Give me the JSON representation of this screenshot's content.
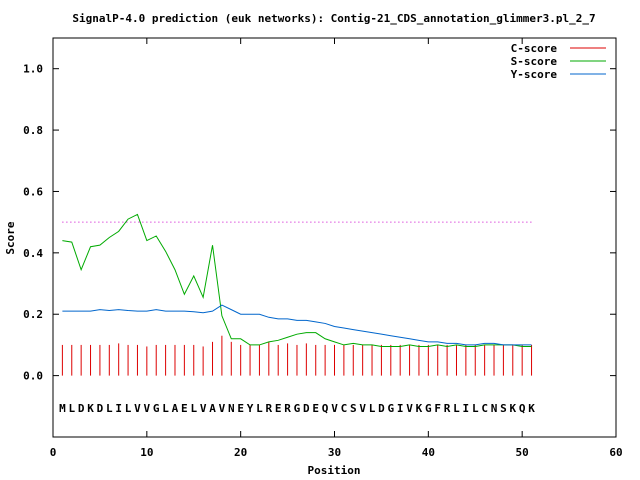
{
  "chart_data": {
    "type": "line",
    "title": "SignalP-4.0 prediction (euk networks): Contig-21_CDS_annotation_glimmer3.pl_2_7",
    "xlabel": "Position",
    "ylabel": "Score",
    "xlim": [
      0,
      60
    ],
    "ylim": [
      -0.2,
      1.1
    ],
    "x_ticks": [
      0,
      10,
      20,
      30,
      40,
      50,
      60
    ],
    "y_ticks": [
      0.0,
      0.2,
      0.4,
      0.6,
      0.8,
      1.0
    ],
    "x_tick_labels": [
      "0",
      "10",
      "20",
      "30",
      "40",
      "50",
      "60"
    ],
    "y_tick_labels": [
      "0.0",
      "0.2",
      "0.4",
      "0.6",
      "0.8",
      "1.0"
    ],
    "legend_position": "top-right",
    "threshold": {
      "value": 0.5,
      "color": "#cc00cc"
    },
    "sequence": [
      "M",
      "L",
      "D",
      "K",
      "D",
      "L",
      "I",
      "L",
      "V",
      "V",
      "G",
      "L",
      "A",
      "E",
      "L",
      "V",
      "A",
      "V",
      "N",
      "E",
      "Y",
      "L",
      "R",
      "E",
      "R",
      "G",
      "D",
      "E",
      "Q",
      "V",
      "C",
      "S",
      "V",
      "L",
      "D",
      "G",
      "I",
      "V",
      "K",
      "G",
      "F",
      "R",
      "L",
      "I",
      "L",
      "C",
      "N",
      "S",
      "K",
      "Q",
      "K"
    ],
    "series": [
      {
        "name": "C-score",
        "color": "#dd0000",
        "style": "impulses",
        "values": [
          0.1,
          0.1,
          0.1,
          0.1,
          0.1,
          0.1,
          0.105,
          0.1,
          0.1,
          0.095,
          0.1,
          0.1,
          0.1,
          0.1,
          0.1,
          0.095,
          0.11,
          0.13,
          0.11,
          0.1,
          0.1,
          0.1,
          0.11,
          0.1,
          0.105,
          0.1,
          0.105,
          0.1,
          0.1,
          0.1,
          0.1,
          0.1,
          0.1,
          0.1,
          0.1,
          0.1,
          0.1,
          0.1,
          0.1,
          0.1,
          0.1,
          0.1,
          0.1,
          0.1,
          0.1,
          0.1,
          0.1,
          0.1,
          0.1,
          0.1,
          0.1
        ]
      },
      {
        "name": "S-score",
        "color": "#00aa00",
        "style": "lines",
        "values": [
          0.44,
          0.435,
          0.345,
          0.42,
          0.425,
          0.45,
          0.47,
          0.51,
          0.525,
          0.44,
          0.455,
          0.405,
          0.345,
          0.265,
          0.325,
          0.255,
          0.425,
          0.195,
          0.12,
          0.12,
          0.1,
          0.1,
          0.11,
          0.115,
          0.125,
          0.135,
          0.14,
          0.14,
          0.12,
          0.11,
          0.1,
          0.105,
          0.1,
          0.1,
          0.095,
          0.095,
          0.095,
          0.1,
          0.095,
          0.095,
          0.1,
          0.095,
          0.1,
          0.095,
          0.095,
          0.1,
          0.1,
          0.1,
          0.1,
          0.095,
          0.095
        ]
      },
      {
        "name": "Y-score",
        "color": "#0066cc",
        "style": "lines",
        "values": [
          0.21,
          0.21,
          0.21,
          0.21,
          0.215,
          0.212,
          0.215,
          0.212,
          0.21,
          0.21,
          0.215,
          0.21,
          0.21,
          0.21,
          0.208,
          0.205,
          0.21,
          0.23,
          0.215,
          0.2,
          0.2,
          0.2,
          0.19,
          0.185,
          0.185,
          0.18,
          0.18,
          0.175,
          0.17,
          0.16,
          0.155,
          0.15,
          0.145,
          0.14,
          0.135,
          0.13,
          0.125,
          0.12,
          0.115,
          0.11,
          0.11,
          0.105,
          0.105,
          0.1,
          0.1,
          0.105,
          0.105,
          0.1,
          0.1,
          0.1,
          0.1
        ]
      }
    ]
  }
}
